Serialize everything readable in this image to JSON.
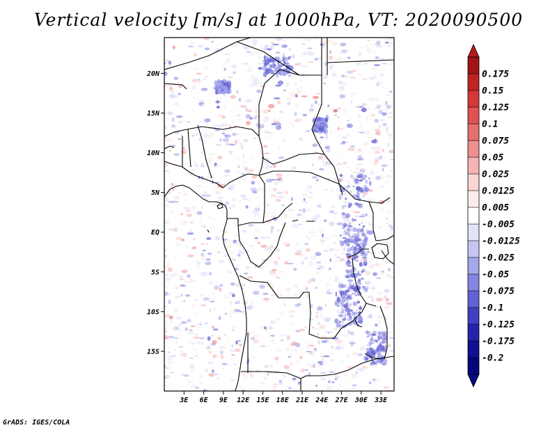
{
  "title": "Vertical velocity [m/s] at 1000hPa, VT: 2020090500",
  "footer": "GrADS: IGES/COLA",
  "map": {
    "lon_range": [
      0,
      35
    ],
    "lat_range": [
      -20,
      24.5
    ],
    "lon_ticks": [
      "3E",
      "6E",
      "9E",
      "12E",
      "15E",
      "18E",
      "21E",
      "24E",
      "27E",
      "30E",
      "33E"
    ],
    "lon_tick_values": [
      3,
      6,
      9,
      12,
      15,
      18,
      21,
      24,
      27,
      30,
      33
    ],
    "lat_ticks": [
      "20N",
      "15N",
      "10N",
      "5N",
      "EQ",
      "5S",
      "10S",
      "15S"
    ],
    "lat_tick_values": [
      20,
      15,
      10,
      5,
      0,
      -5,
      -10,
      -15
    ]
  },
  "colorbar": {
    "labels": [
      "0.175",
      "0.15",
      "0.125",
      "0.1",
      "0.075",
      "0.05",
      "0.025",
      "0.0125",
      "0.005",
      "-0.005",
      "-0.0125",
      "-0.025",
      "-0.05",
      "-0.075",
      "-0.1",
      "-0.125",
      "-0.175",
      "-0.2"
    ],
    "colors": [
      "#a01414",
      "#be2424",
      "#d43838",
      "#e05252",
      "#e67070",
      "#ee9090",
      "#f6b4b4",
      "#fbd6d6",
      "#fdecec",
      "#ffffff",
      "#e2e2fa",
      "#c6c6f4",
      "#a6a6ec",
      "#8484e2",
      "#6262d6",
      "#4040c4",
      "#2424aa",
      "#101092",
      "#06067a"
    ],
    "top_color": "#b01c1c",
    "bottom_color": "#0a0a80"
  }
}
